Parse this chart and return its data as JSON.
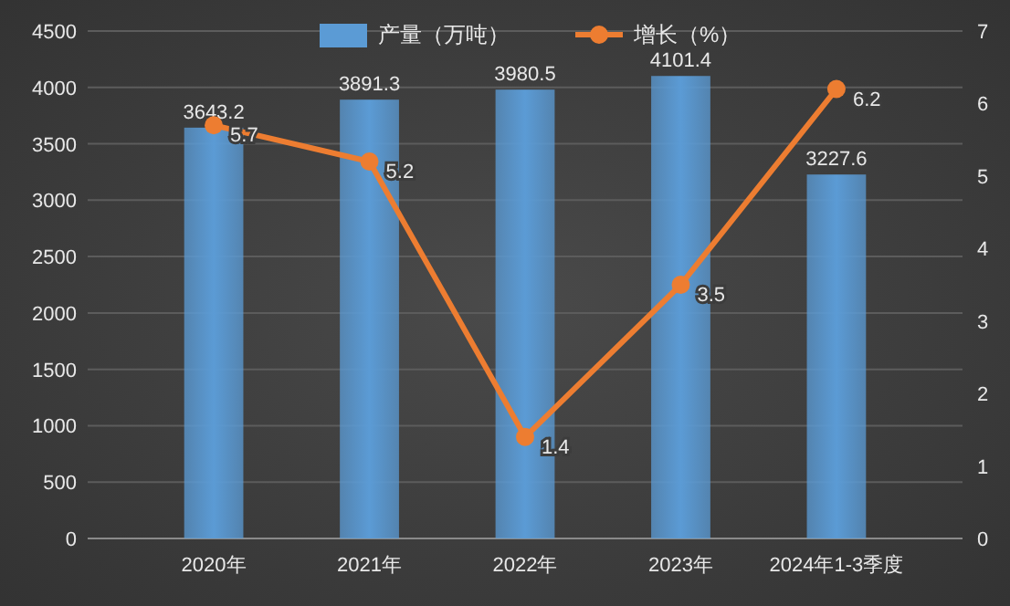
{
  "chart_data": {
    "type": "bar",
    "categories": [
      "2020年",
      "2021年",
      "2022年",
      "2023年",
      "2024年1-3季度"
    ],
    "series": [
      {
        "name": "产量（万吨）",
        "color": "#5b9bd5",
        "values": [
          3643.2,
          3891.3,
          3980.5,
          4101.4,
          3227.6
        ]
      },
      {
        "name": "增长（%）",
        "type": "line",
        "axis": "y2",
        "color": "#ed7d31",
        "values": [
          5.7,
          5.2,
          1.4,
          3.5,
          6.2
        ]
      }
    ],
    "ylim": [
      0,
      4500
    ],
    "yticks": [
      0,
      500,
      1000,
      1500,
      2000,
      2500,
      3000,
      3500,
      4000,
      4500
    ],
    "y2lim": [
      0,
      7
    ],
    "y2ticks": [
      0,
      1,
      2,
      3,
      4,
      5,
      6,
      7
    ],
    "grid": "y",
    "legend": "top",
    "marker": "circle",
    "data_labels": true
  }
}
